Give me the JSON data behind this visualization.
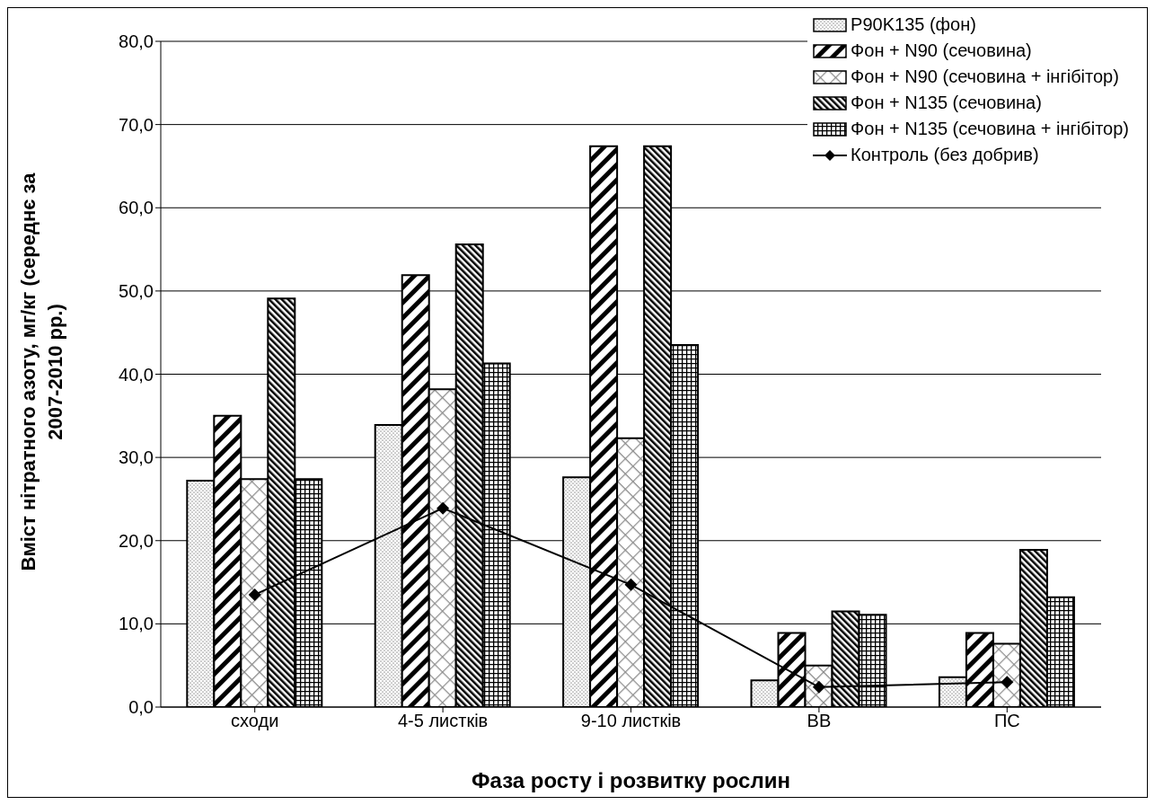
{
  "chart_data": {
    "type": "bar",
    "xlabel": "Фаза росту і розвитку рослин",
    "ylabel": "Вміст нітратного азоту, мг/кг (середнє за 2007-2010 рр.)",
    "categories": [
      "сходи",
      "4-5 листків",
      "9-10 листків",
      "ВВ",
      "ПС"
    ],
    "series": [
      {
        "name": "P90K135 (фон)",
        "color": "#000000",
        "values": [
          27.2,
          33.9,
          27.6,
          3.2,
          3.6
        ]
      },
      {
        "name": "Фон + N90 (сечовина)",
        "color": "#000000",
        "values": [
          35.0,
          51.9,
          67.4,
          8.9,
          8.9
        ]
      },
      {
        "name": "Фон + N90 (сечовина + інгібітор)",
        "color": "#000000",
        "values": [
          27.4,
          38.2,
          32.3,
          5.0,
          7.6
        ]
      },
      {
        "name": "Фон + N135 (сечовина)",
        "color": "#000000",
        "values": [
          49.1,
          55.6,
          67.4,
          11.5,
          18.9
        ]
      },
      {
        "name": "Фон + N135 (сечовина + інгібітор)",
        "color": "#000000",
        "values": [
          27.4,
          41.3,
          43.5,
          11.1,
          13.2
        ]
      },
      {
        "name": "Контроль (без добрив)",
        "type": "line",
        "color": "#000000",
        "marker": "diamond",
        "values": [
          13.5,
          23.9,
          14.7,
          2.4,
          3.0
        ]
      }
    ],
    "ylim": [
      0,
      80
    ],
    "yticks": [
      {
        "value": 0,
        "label": "0,0"
      },
      {
        "value": 10,
        "label": "10,0"
      },
      {
        "value": 20,
        "label": "20,0"
      },
      {
        "value": 30,
        "label": "30,0"
      },
      {
        "value": 40,
        "label": "40,0"
      },
      {
        "value": 50,
        "label": "50,0"
      },
      {
        "value": 60,
        "label": "60,0"
      },
      {
        "value": 70,
        "label": "70,0"
      },
      {
        "value": 80,
        "label": "80,0"
      }
    ],
    "grid": "y",
    "legend": "top right"
  }
}
